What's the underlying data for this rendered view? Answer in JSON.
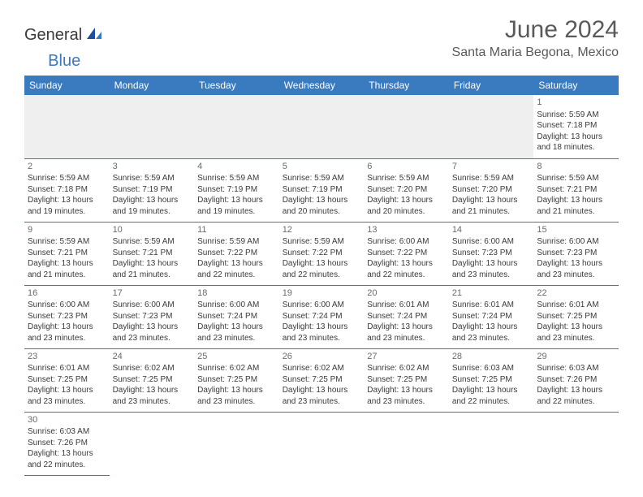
{
  "logo": {
    "main": "General",
    "sub": "Blue"
  },
  "title": "June 2024",
  "location": "Santa Maria Begona, Mexico",
  "colors": {
    "header_bg": "#3a7bbf",
    "header_text": "#ffffff",
    "cell_border": "#3a7bbf",
    "blank_bg": "#efefef",
    "text": "#3a3a3a",
    "title_text": "#5a5a5a"
  },
  "day_headers": [
    "Sunday",
    "Monday",
    "Tuesday",
    "Wednesday",
    "Thursday",
    "Friday",
    "Saturday"
  ],
  "grid": [
    [
      {
        "blank": "top"
      },
      {
        "blank": "top"
      },
      {
        "blank": "top"
      },
      {
        "blank": "top"
      },
      {
        "blank": "top"
      },
      {
        "blank": "top"
      },
      {
        "n": "1",
        "sr": "Sunrise: 5:59 AM",
        "ss": "Sunset: 7:18 PM",
        "d1": "Daylight: 13 hours",
        "d2": "and 18 minutes."
      }
    ],
    [
      {
        "n": "2",
        "sr": "Sunrise: 5:59 AM",
        "ss": "Sunset: 7:18 PM",
        "d1": "Daylight: 13 hours",
        "d2": "and 19 minutes."
      },
      {
        "n": "3",
        "sr": "Sunrise: 5:59 AM",
        "ss": "Sunset: 7:19 PM",
        "d1": "Daylight: 13 hours",
        "d2": "and 19 minutes."
      },
      {
        "n": "4",
        "sr": "Sunrise: 5:59 AM",
        "ss": "Sunset: 7:19 PM",
        "d1": "Daylight: 13 hours",
        "d2": "and 19 minutes."
      },
      {
        "n": "5",
        "sr": "Sunrise: 5:59 AM",
        "ss": "Sunset: 7:19 PM",
        "d1": "Daylight: 13 hours",
        "d2": "and 20 minutes."
      },
      {
        "n": "6",
        "sr": "Sunrise: 5:59 AM",
        "ss": "Sunset: 7:20 PM",
        "d1": "Daylight: 13 hours",
        "d2": "and 20 minutes."
      },
      {
        "n": "7",
        "sr": "Sunrise: 5:59 AM",
        "ss": "Sunset: 7:20 PM",
        "d1": "Daylight: 13 hours",
        "d2": "and 21 minutes."
      },
      {
        "n": "8",
        "sr": "Sunrise: 5:59 AM",
        "ss": "Sunset: 7:21 PM",
        "d1": "Daylight: 13 hours",
        "d2": "and 21 minutes."
      }
    ],
    [
      {
        "n": "9",
        "sr": "Sunrise: 5:59 AM",
        "ss": "Sunset: 7:21 PM",
        "d1": "Daylight: 13 hours",
        "d2": "and 21 minutes."
      },
      {
        "n": "10",
        "sr": "Sunrise: 5:59 AM",
        "ss": "Sunset: 7:21 PM",
        "d1": "Daylight: 13 hours",
        "d2": "and 21 minutes."
      },
      {
        "n": "11",
        "sr": "Sunrise: 5:59 AM",
        "ss": "Sunset: 7:22 PM",
        "d1": "Daylight: 13 hours",
        "d2": "and 22 minutes."
      },
      {
        "n": "12",
        "sr": "Sunrise: 5:59 AM",
        "ss": "Sunset: 7:22 PM",
        "d1": "Daylight: 13 hours",
        "d2": "and 22 minutes."
      },
      {
        "n": "13",
        "sr": "Sunrise: 6:00 AM",
        "ss": "Sunset: 7:22 PM",
        "d1": "Daylight: 13 hours",
        "d2": "and 22 minutes."
      },
      {
        "n": "14",
        "sr": "Sunrise: 6:00 AM",
        "ss": "Sunset: 7:23 PM",
        "d1": "Daylight: 13 hours",
        "d2": "and 23 minutes."
      },
      {
        "n": "15",
        "sr": "Sunrise: 6:00 AM",
        "ss": "Sunset: 7:23 PM",
        "d1": "Daylight: 13 hours",
        "d2": "and 23 minutes."
      }
    ],
    [
      {
        "n": "16",
        "sr": "Sunrise: 6:00 AM",
        "ss": "Sunset: 7:23 PM",
        "d1": "Daylight: 13 hours",
        "d2": "and 23 minutes."
      },
      {
        "n": "17",
        "sr": "Sunrise: 6:00 AM",
        "ss": "Sunset: 7:23 PM",
        "d1": "Daylight: 13 hours",
        "d2": "and 23 minutes."
      },
      {
        "n": "18",
        "sr": "Sunrise: 6:00 AM",
        "ss": "Sunset: 7:24 PM",
        "d1": "Daylight: 13 hours",
        "d2": "and 23 minutes."
      },
      {
        "n": "19",
        "sr": "Sunrise: 6:00 AM",
        "ss": "Sunset: 7:24 PM",
        "d1": "Daylight: 13 hours",
        "d2": "and 23 minutes."
      },
      {
        "n": "20",
        "sr": "Sunrise: 6:01 AM",
        "ss": "Sunset: 7:24 PM",
        "d1": "Daylight: 13 hours",
        "d2": "and 23 minutes."
      },
      {
        "n": "21",
        "sr": "Sunrise: 6:01 AM",
        "ss": "Sunset: 7:24 PM",
        "d1": "Daylight: 13 hours",
        "d2": "and 23 minutes."
      },
      {
        "n": "22",
        "sr": "Sunrise: 6:01 AM",
        "ss": "Sunset: 7:25 PM",
        "d1": "Daylight: 13 hours",
        "d2": "and 23 minutes."
      }
    ],
    [
      {
        "n": "23",
        "sr": "Sunrise: 6:01 AM",
        "ss": "Sunset: 7:25 PM",
        "d1": "Daylight: 13 hours",
        "d2": "and 23 minutes."
      },
      {
        "n": "24",
        "sr": "Sunrise: 6:02 AM",
        "ss": "Sunset: 7:25 PM",
        "d1": "Daylight: 13 hours",
        "d2": "and 23 minutes."
      },
      {
        "n": "25",
        "sr": "Sunrise: 6:02 AM",
        "ss": "Sunset: 7:25 PM",
        "d1": "Daylight: 13 hours",
        "d2": "and 23 minutes."
      },
      {
        "n": "26",
        "sr": "Sunrise: 6:02 AM",
        "ss": "Sunset: 7:25 PM",
        "d1": "Daylight: 13 hours",
        "d2": "and 23 minutes."
      },
      {
        "n": "27",
        "sr": "Sunrise: 6:02 AM",
        "ss": "Sunset: 7:25 PM",
        "d1": "Daylight: 13 hours",
        "d2": "and 23 minutes."
      },
      {
        "n": "28",
        "sr": "Sunrise: 6:03 AM",
        "ss": "Sunset: 7:25 PM",
        "d1": "Daylight: 13 hours",
        "d2": "and 22 minutes."
      },
      {
        "n": "29",
        "sr": "Sunrise: 6:03 AM",
        "ss": "Sunset: 7:26 PM",
        "d1": "Daylight: 13 hours",
        "d2": "and 22 minutes."
      }
    ],
    [
      {
        "n": "30",
        "sr": "Sunrise: 6:03 AM",
        "ss": "Sunset: 7:26 PM",
        "d1": "Daylight: 13 hours",
        "d2": "and 22 minutes."
      },
      {
        "blank": "bottom"
      },
      {
        "blank": "bottom"
      },
      {
        "blank": "bottom"
      },
      {
        "blank": "bottom"
      },
      {
        "blank": "bottom"
      },
      {
        "blank": "bottom"
      }
    ]
  ]
}
